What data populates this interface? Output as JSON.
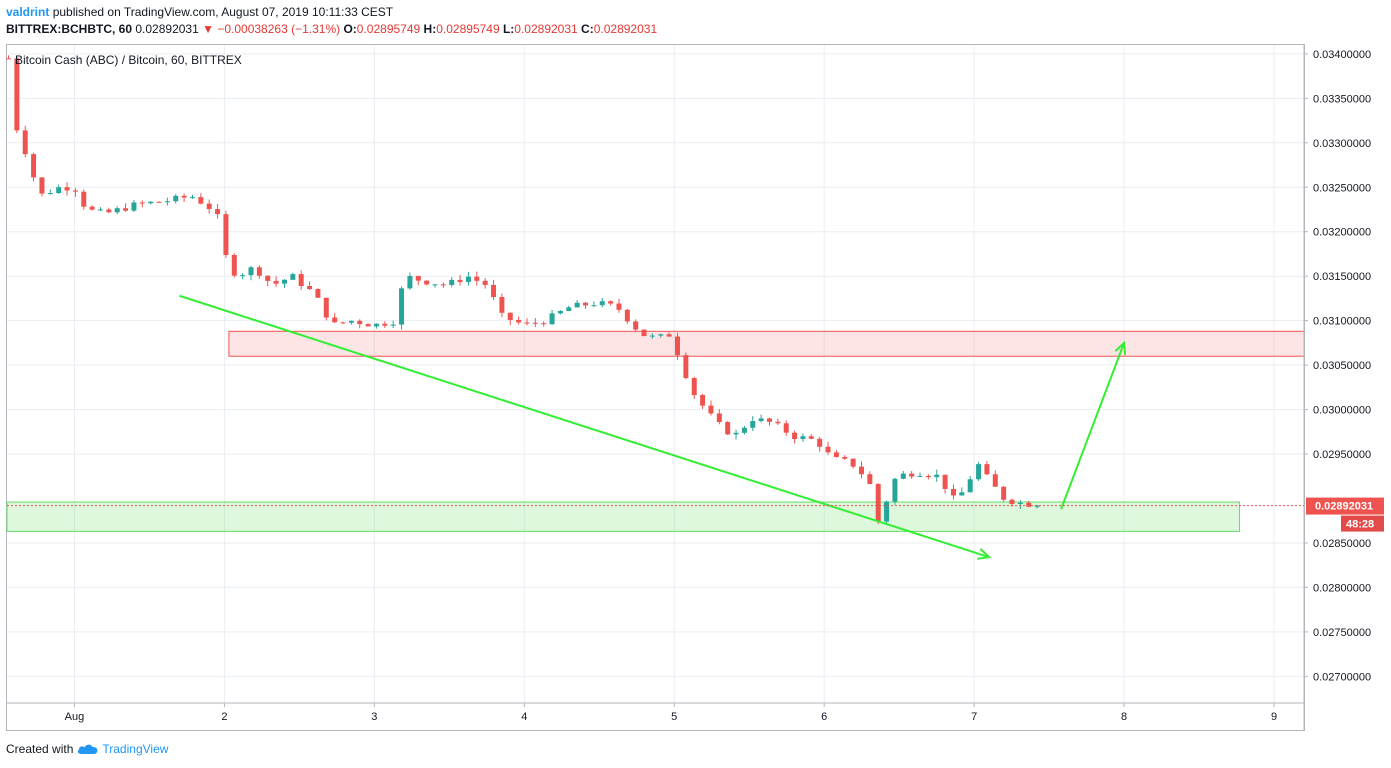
{
  "header": {
    "author": "valdrint",
    "published_text": "published on TradingView.com, August 07, 2019 10:11:33 CEST",
    "symbol": "BITTREX:BCHBTC, 60",
    "last_price": "0.02892031",
    "change": "−0.00038263 (−1.31%)",
    "open_label": "O:",
    "open": "0.02895749",
    "high_label": "H:",
    "high": "0.02895749",
    "low_label": "L:",
    "low": "0.02892031",
    "close_label": "C:",
    "close": "0.02892031"
  },
  "chart_title": "Bitcoin Cash (ABC) / Bitcoin, 60, BITTREX",
  "footer": {
    "created_with": "Created with",
    "brand": "TradingView"
  },
  "colors": {
    "up": "#26a69a",
    "down": "#ef5350",
    "resistance": "#ef5350",
    "support": "#66dd66",
    "trend": "#33ee33",
    "accent": "#2196f3"
  },
  "price_tag": {
    "price": "0.02892031",
    "countdown": "48:28"
  },
  "chart_data": {
    "type": "candlestick",
    "title": "Bitcoin Cash (ABC) / Bitcoin, 60, BITTREX",
    "ylim": [
      0.0267,
      0.0341
    ],
    "xlim": [
      -0.45,
      8.2
    ],
    "y_ticks": [
      "0.03400000",
      "0.03350000",
      "0.03300000",
      "0.03250000",
      "0.03200000",
      "0.03150000",
      "0.03100000",
      "0.03050000",
      "0.03000000",
      "0.02950000",
      "0.02850000",
      "0.02800000",
      "0.02750000",
      "0.02700000"
    ],
    "x_ticks": [
      {
        "v": 0,
        "label": "Aug"
      },
      {
        "v": 1,
        "label": "2"
      },
      {
        "v": 2,
        "label": "3"
      },
      {
        "v": 3,
        "label": "4"
      },
      {
        "v": 4,
        "label": "5"
      },
      {
        "v": 5,
        "label": "6"
      },
      {
        "v": 6,
        "label": "7"
      },
      {
        "v": 7,
        "label": "8"
      },
      {
        "v": 8,
        "label": "9"
      }
    ],
    "current_price": 0.02892031,
    "price_path": [
      [
        -0.44,
        0.03395
      ],
      [
        -0.38,
        0.0331
      ],
      [
        -0.3,
        0.0328
      ],
      [
        -0.24,
        0.0324
      ],
      [
        -0.1,
        0.0325
      ],
      [
        0.0,
        0.0325
      ],
      [
        0.08,
        0.03225
      ],
      [
        0.2,
        0.0322
      ],
      [
        0.4,
        0.0323
      ],
      [
        0.62,
        0.03235
      ],
      [
        0.78,
        0.0324
      ],
      [
        0.88,
        0.0323
      ],
      [
        0.95,
        0.0322
      ],
      [
        1.0,
        0.03175
      ],
      [
        1.08,
        0.0315
      ],
      [
        1.2,
        0.0316
      ],
      [
        1.32,
        0.0314
      ],
      [
        1.45,
        0.0315
      ],
      [
        1.6,
        0.0313
      ],
      [
        1.72,
        0.03095
      ],
      [
        1.85,
        0.031
      ],
      [
        2.0,
        0.03095
      ],
      [
        2.14,
        0.031
      ],
      [
        2.2,
        0.0315
      ],
      [
        2.32,
        0.03145
      ],
      [
        2.48,
        0.0314
      ],
      [
        2.62,
        0.0315
      ],
      [
        2.75,
        0.0314
      ],
      [
        2.85,
        0.03105
      ],
      [
        3.0,
        0.03095
      ],
      [
        3.14,
        0.031
      ],
      [
        3.3,
        0.03115
      ],
      [
        3.48,
        0.0312
      ],
      [
        3.62,
        0.03115
      ],
      [
        3.78,
        0.03085
      ],
      [
        3.88,
        0.0308
      ],
      [
        3.98,
        0.03085
      ],
      [
        4.05,
        0.0305
      ],
      [
        4.14,
        0.03015
      ],
      [
        4.28,
        0.02985
      ],
      [
        4.4,
        0.0297
      ],
      [
        4.52,
        0.0299
      ],
      [
        4.65,
        0.02985
      ],
      [
        4.8,
        0.0297
      ],
      [
        4.95,
        0.02965
      ],
      [
        5.05,
        0.02945
      ],
      [
        5.18,
        0.0294
      ],
      [
        5.3,
        0.0292
      ],
      [
        5.35,
        0.0287
      ],
      [
        5.48,
        0.02925
      ],
      [
        5.62,
        0.0293
      ],
      [
        5.76,
        0.02925
      ],
      [
        5.88,
        0.02895
      ],
      [
        5.98,
        0.02925
      ],
      [
        6.0,
        0.02945
      ],
      [
        6.1,
        0.0292
      ],
      [
        6.2,
        0.029
      ],
      [
        6.3,
        0.02895
      ],
      [
        6.42,
        0.02893
      ]
    ],
    "annotations": {
      "resistance_zone": {
        "y_low": 0.0306,
        "y_high": 0.03088,
        "x_start": 1.03,
        "x_end": 8.2
      },
      "support_zone": {
        "y_low": 0.02863,
        "y_high": 0.02896,
        "x_start": -0.45,
        "x_end": 7.77
      },
      "down_trendline": {
        "from": [
          0.7,
          0.03128
        ],
        "to": [
          6.1,
          0.02834
        ]
      },
      "up_arrow": {
        "from": [
          6.58,
          0.02888
        ],
        "to": [
          7.0,
          0.03075
        ]
      }
    }
  }
}
